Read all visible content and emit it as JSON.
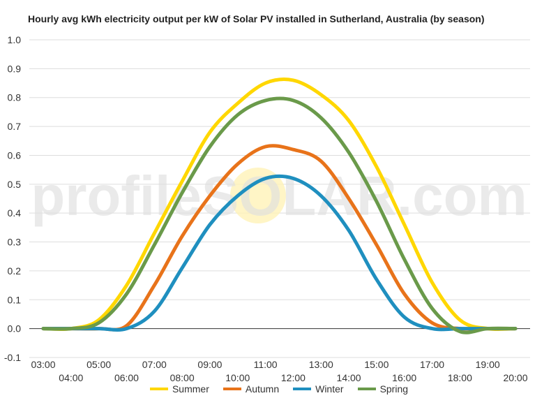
{
  "chart_data": {
    "type": "line",
    "title": "Hourly avg kWh electricity output per kW of Solar PV installed in Sutherland, Australia (by season)",
    "xlabel": "",
    "ylabel": "",
    "ylim": [
      -0.1,
      1.0
    ],
    "yticks": [
      "1.0",
      "0.9",
      "0.8",
      "0.7",
      "0.6",
      "0.5",
      "0.4",
      "0.3",
      "0.2",
      "0.1",
      "0.0",
      "-0.1"
    ],
    "categories": [
      "03:00",
      "04:00",
      "05:00",
      "06:00",
      "07:00",
      "08:00",
      "09:00",
      "10:00",
      "11:00",
      "12:00",
      "13:00",
      "14:00",
      "15:00",
      "16:00",
      "17:00",
      "18:00",
      "19:00",
      "20:00"
    ],
    "grid": true,
    "legend_position": "bottom",
    "series": [
      {
        "name": "Summer",
        "color": "#FFD700",
        "values": [
          0,
          0,
          0.03,
          0.15,
          0.33,
          0.51,
          0.68,
          0.78,
          0.85,
          0.86,
          0.81,
          0.72,
          0.56,
          0.36,
          0.16,
          0.03,
          0,
          0
        ]
      },
      {
        "name": "Autumn",
        "color": "#E8731A",
        "values": [
          0,
          0,
          0,
          0.01,
          0.15,
          0.32,
          0.46,
          0.57,
          0.63,
          0.62,
          0.58,
          0.45,
          0.29,
          0.12,
          0.02,
          0,
          0,
          0
        ]
      },
      {
        "name": "Winter",
        "color": "#1F8FBF",
        "values": [
          0,
          0,
          0,
          0,
          0.06,
          0.21,
          0.36,
          0.46,
          0.52,
          0.52,
          0.46,
          0.34,
          0.17,
          0.04,
          0,
          0,
          0,
          0
        ]
      },
      {
        "name": "Spring",
        "color": "#6A9A4A",
        "values": [
          0,
          0,
          0.02,
          0.12,
          0.29,
          0.47,
          0.63,
          0.74,
          0.79,
          0.79,
          0.73,
          0.61,
          0.44,
          0.24,
          0.07,
          -0.01,
          0,
          0
        ]
      }
    ]
  },
  "watermark": "profileSOLAR.com"
}
